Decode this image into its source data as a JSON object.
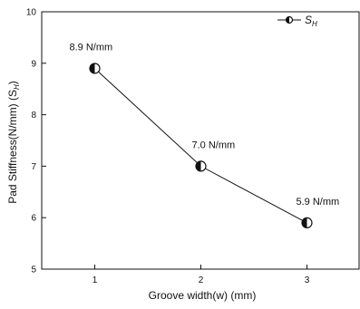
{
  "chart_data": {
    "type": "line",
    "title": "",
    "xlabel": "Groove width(w) (mm)",
    "ylabel_main": "Pad Stiffness(N/mm) (S",
    "ylabel_sub": "H",
    "ylabel_close": ")",
    "xlim": [
      0.5,
      3.5
    ],
    "ylim": [
      5,
      10
    ],
    "x_ticks": [
      1,
      2,
      3
    ],
    "y_ticks": [
      5,
      6,
      7,
      8,
      9,
      10
    ],
    "grid": false,
    "legend_position": "top-right",
    "series": [
      {
        "name": "S",
        "name_sub": "H",
        "x": [
          1,
          2,
          3
        ],
        "y": [
          8.9,
          7.0,
          5.9
        ],
        "data_labels": [
          "8.9 N/mm",
          "7.0 N/mm",
          "5.9 N/mm"
        ],
        "marker": "half-filled-circle",
        "color": "#111111"
      }
    ]
  }
}
